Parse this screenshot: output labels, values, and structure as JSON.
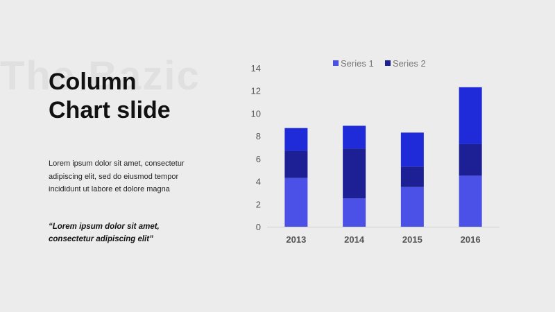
{
  "slide": {
    "watermark": "The Bazic",
    "title_line1": "Column",
    "title_line2": "Chart slide",
    "body": "Lorem ipsum dolor sit amet, consectetur adipiscing elit, sed do eiusmod tempor incididunt ut labore et dolore magna",
    "quote": "“Lorem ipsum dolor sit amet, consectetur adipiscing elit”"
  },
  "chart_data": {
    "type": "bar",
    "stacked": true,
    "categories": [
      "2013",
      "2014",
      "2015",
      "2016"
    ],
    "series": [
      {
        "name": "Series 1",
        "values": [
          4.3,
          2.5,
          3.5,
          4.5
        ],
        "color": "#4b50e6"
      },
      {
        "name": "Series 2",
        "values": [
          2.4,
          4.4,
          1.8,
          2.8
        ],
        "color": "#1c2094"
      },
      {
        "name": "",
        "values": [
          2.0,
          2.0,
          3.0,
          5.0
        ],
        "color": "#1f2bd9"
      }
    ],
    "ylim": [
      0,
      14
    ],
    "yticks": [
      0,
      2,
      4,
      6,
      8,
      10,
      12,
      14
    ],
    "title": "",
    "xlabel": "",
    "ylabel": "",
    "legend": "top",
    "grid": false
  }
}
